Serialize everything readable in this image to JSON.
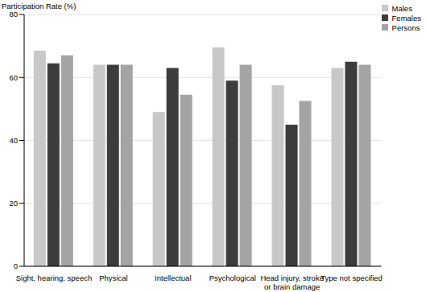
{
  "chart_data": {
    "type": "bar",
    "ylabel": "Participation Rate (%)",
    "categories": [
      "Sight, hearing, speech",
      "Physical",
      "Intellectual",
      "Psychological",
      "Head injury, stroke or brain damage",
      "Type not specified"
    ],
    "series": [
      {
        "name": "Males",
        "color": "#c8c8c8",
        "values": [
          68.5,
          64,
          49,
          69.5,
          57.5,
          63
        ]
      },
      {
        "name": "Females",
        "color": "#3c3c3c",
        "values": [
          64.5,
          64,
          63,
          59,
          45,
          65
        ]
      },
      {
        "name": "Persons",
        "color": "#a4a4a4",
        "values": [
          67,
          64,
          54.5,
          64,
          52.5,
          64
        ]
      }
    ],
    "ylim": [
      0,
      80
    ],
    "yticks": [
      0,
      20,
      40,
      60,
      80
    ],
    "grid": true,
    "legend": "top-right"
  }
}
